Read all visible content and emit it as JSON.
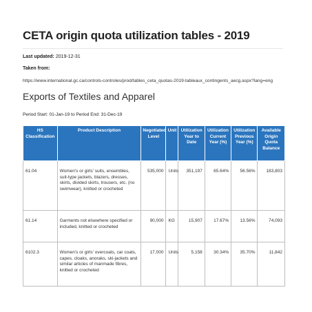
{
  "document": {
    "title": "CETA origin quota utilization tables - 2019",
    "last_updated_label": "Last updated:",
    "last_updated_value": "2019-12-31",
    "taken_from_label": "Taken from:",
    "source_url": "https://www.international.gc.ca/controls-controles/prod/tables_ceta_quotas-2019-tableaux_contingents_aecg.aspx?lang=eng"
  },
  "section": {
    "heading": "Exports of Textiles and Apparel",
    "period": "Period Start: 01-Jan-19 to Period End: 31-Dec-19"
  },
  "table": {
    "headers": [
      "HS Classification",
      "Product Description",
      "Negotiated Level",
      "Unit",
      "Utilization Year to Date",
      "Utilization Current Year (%)",
      "Utilization Previous Year (%)",
      "Available Origin Quota Balance"
    ],
    "rows": [
      {
        "hs": "61.04",
        "description": "Women's or girls' suits, ensembles, suit-type jackets, blazers, dresses, skirts, divided skirts, trousers, etc. (no swimwear), knitted or crocheted",
        "negotiated": "535,000",
        "unit": "Units",
        "ytd": "351,197",
        "current_pct": "65.64%",
        "previous_pct": "56.56%",
        "balance": "183,803"
      },
      {
        "hs": "61.14",
        "description": "Garments not elsewhere specified or included, knitted or crocheted",
        "negotiated": "90,000",
        "unit": "KG",
        "ytd": "15,907",
        "current_pct": "17.67%",
        "previous_pct": "13.56%",
        "balance": "74,093"
      },
      {
        "hs": "6102.3",
        "description": "Women's or girls' overcoats, car coats, capes, cloaks, anoraks, ski-jackets and similar articles of manmade fibres, knitted or crocheted",
        "negotiated": "17,000",
        "unit": "Units",
        "ytd": "5,158",
        "current_pct": "30.34%",
        "previous_pct": "35.70%",
        "balance": "11,842"
      }
    ]
  }
}
